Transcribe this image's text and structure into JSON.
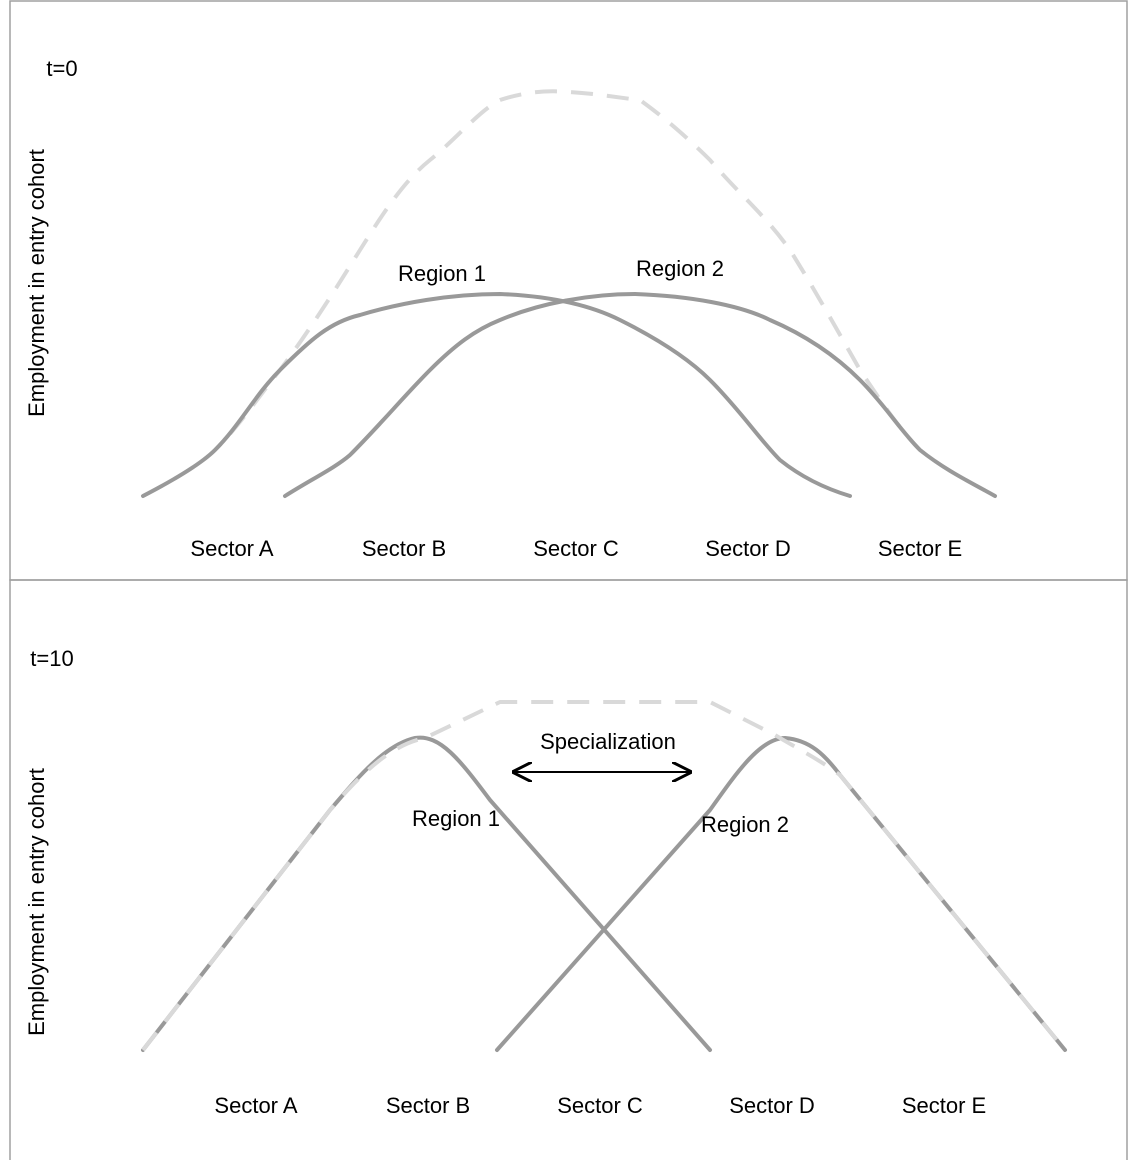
{
  "panels": [
    {
      "time": "t=0",
      "y_label": "Employment in entry cohort",
      "regions": [
        "Region 1",
        "Region 2"
      ],
      "sectors": [
        "Sector A",
        "Sector B",
        "Sector C",
        "Sector D",
        "Sector E"
      ]
    },
    {
      "time": "t=10",
      "y_label": "Employment in entry cohort",
      "regions": [
        "Region 1",
        "Region 2"
      ],
      "annotation": "Specialization",
      "sectors": [
        "Sector A",
        "Sector B",
        "Sector C",
        "Sector D",
        "Sector E"
      ]
    }
  ]
}
